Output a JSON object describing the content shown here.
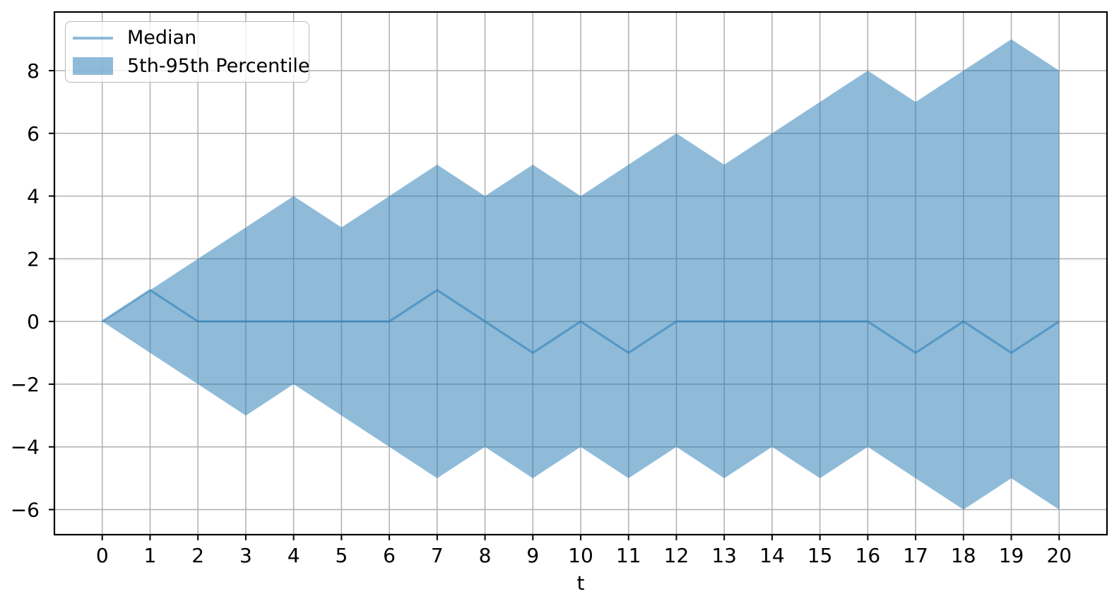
{
  "chart_data": {
    "type": "area",
    "title": "",
    "xlabel": "t",
    "ylabel": "",
    "x": [
      0,
      1,
      2,
      3,
      4,
      5,
      6,
      7,
      8,
      9,
      10,
      11,
      12,
      13,
      14,
      15,
      16,
      17,
      18,
      19,
      20
    ],
    "series": [
      {
        "name": "Median",
        "type": "line",
        "values": [
          0,
          1,
          0,
          0,
          0,
          0,
          0,
          1,
          0,
          -1,
          0,
          -1,
          0,
          0,
          0,
          0,
          0,
          -1,
          0,
          -1,
          0
        ]
      },
      {
        "name": "5th-95th Percentile",
        "type": "band",
        "upper": [
          0,
          1,
          2,
          3,
          4,
          3,
          4,
          5,
          4,
          5,
          4,
          5,
          6,
          5,
          6,
          7,
          8,
          7,
          8,
          9,
          8
        ],
        "lower": [
          0,
          -1,
          -2,
          -3,
          -2,
          -3,
          -4,
          -5,
          -4,
          -5,
          -4,
          -5,
          -4,
          -5,
          -4,
          -5,
          -4,
          -5,
          -6,
          -5,
          -6
        ]
      }
    ],
    "xlim": [
      -1,
      21
    ],
    "ylim": [
      -6.8,
      9.87
    ],
    "xticks": [
      0,
      1,
      2,
      3,
      4,
      5,
      6,
      7,
      8,
      9,
      10,
      11,
      12,
      13,
      14,
      15,
      16,
      17,
      18,
      19,
      20
    ],
    "xtick_labels": [
      "0",
      "1",
      "2",
      "3",
      "4",
      "5",
      "6",
      "7",
      "8",
      "9",
      "10",
      "11",
      "12",
      "13",
      "14",
      "15",
      "16",
      "17",
      "18",
      "19",
      "20"
    ],
    "yticks": [
      -6,
      -4,
      -2,
      0,
      2,
      4,
      6,
      8
    ],
    "ytick_labels": [
      "−6",
      "−4",
      "−2",
      "0",
      "2",
      "4",
      "6",
      "8"
    ],
    "grid": true,
    "legend": {
      "position": "upper left",
      "items": [
        "Median",
        "5th-95th Percentile"
      ]
    },
    "colors": {
      "base": "#1f77b4",
      "fill_alpha": 0.5,
      "line_alpha": 0.5,
      "grid": "#b0b0b0",
      "spine": "#000000",
      "tick_label": "#000000",
      "background": "#ffffff"
    }
  }
}
